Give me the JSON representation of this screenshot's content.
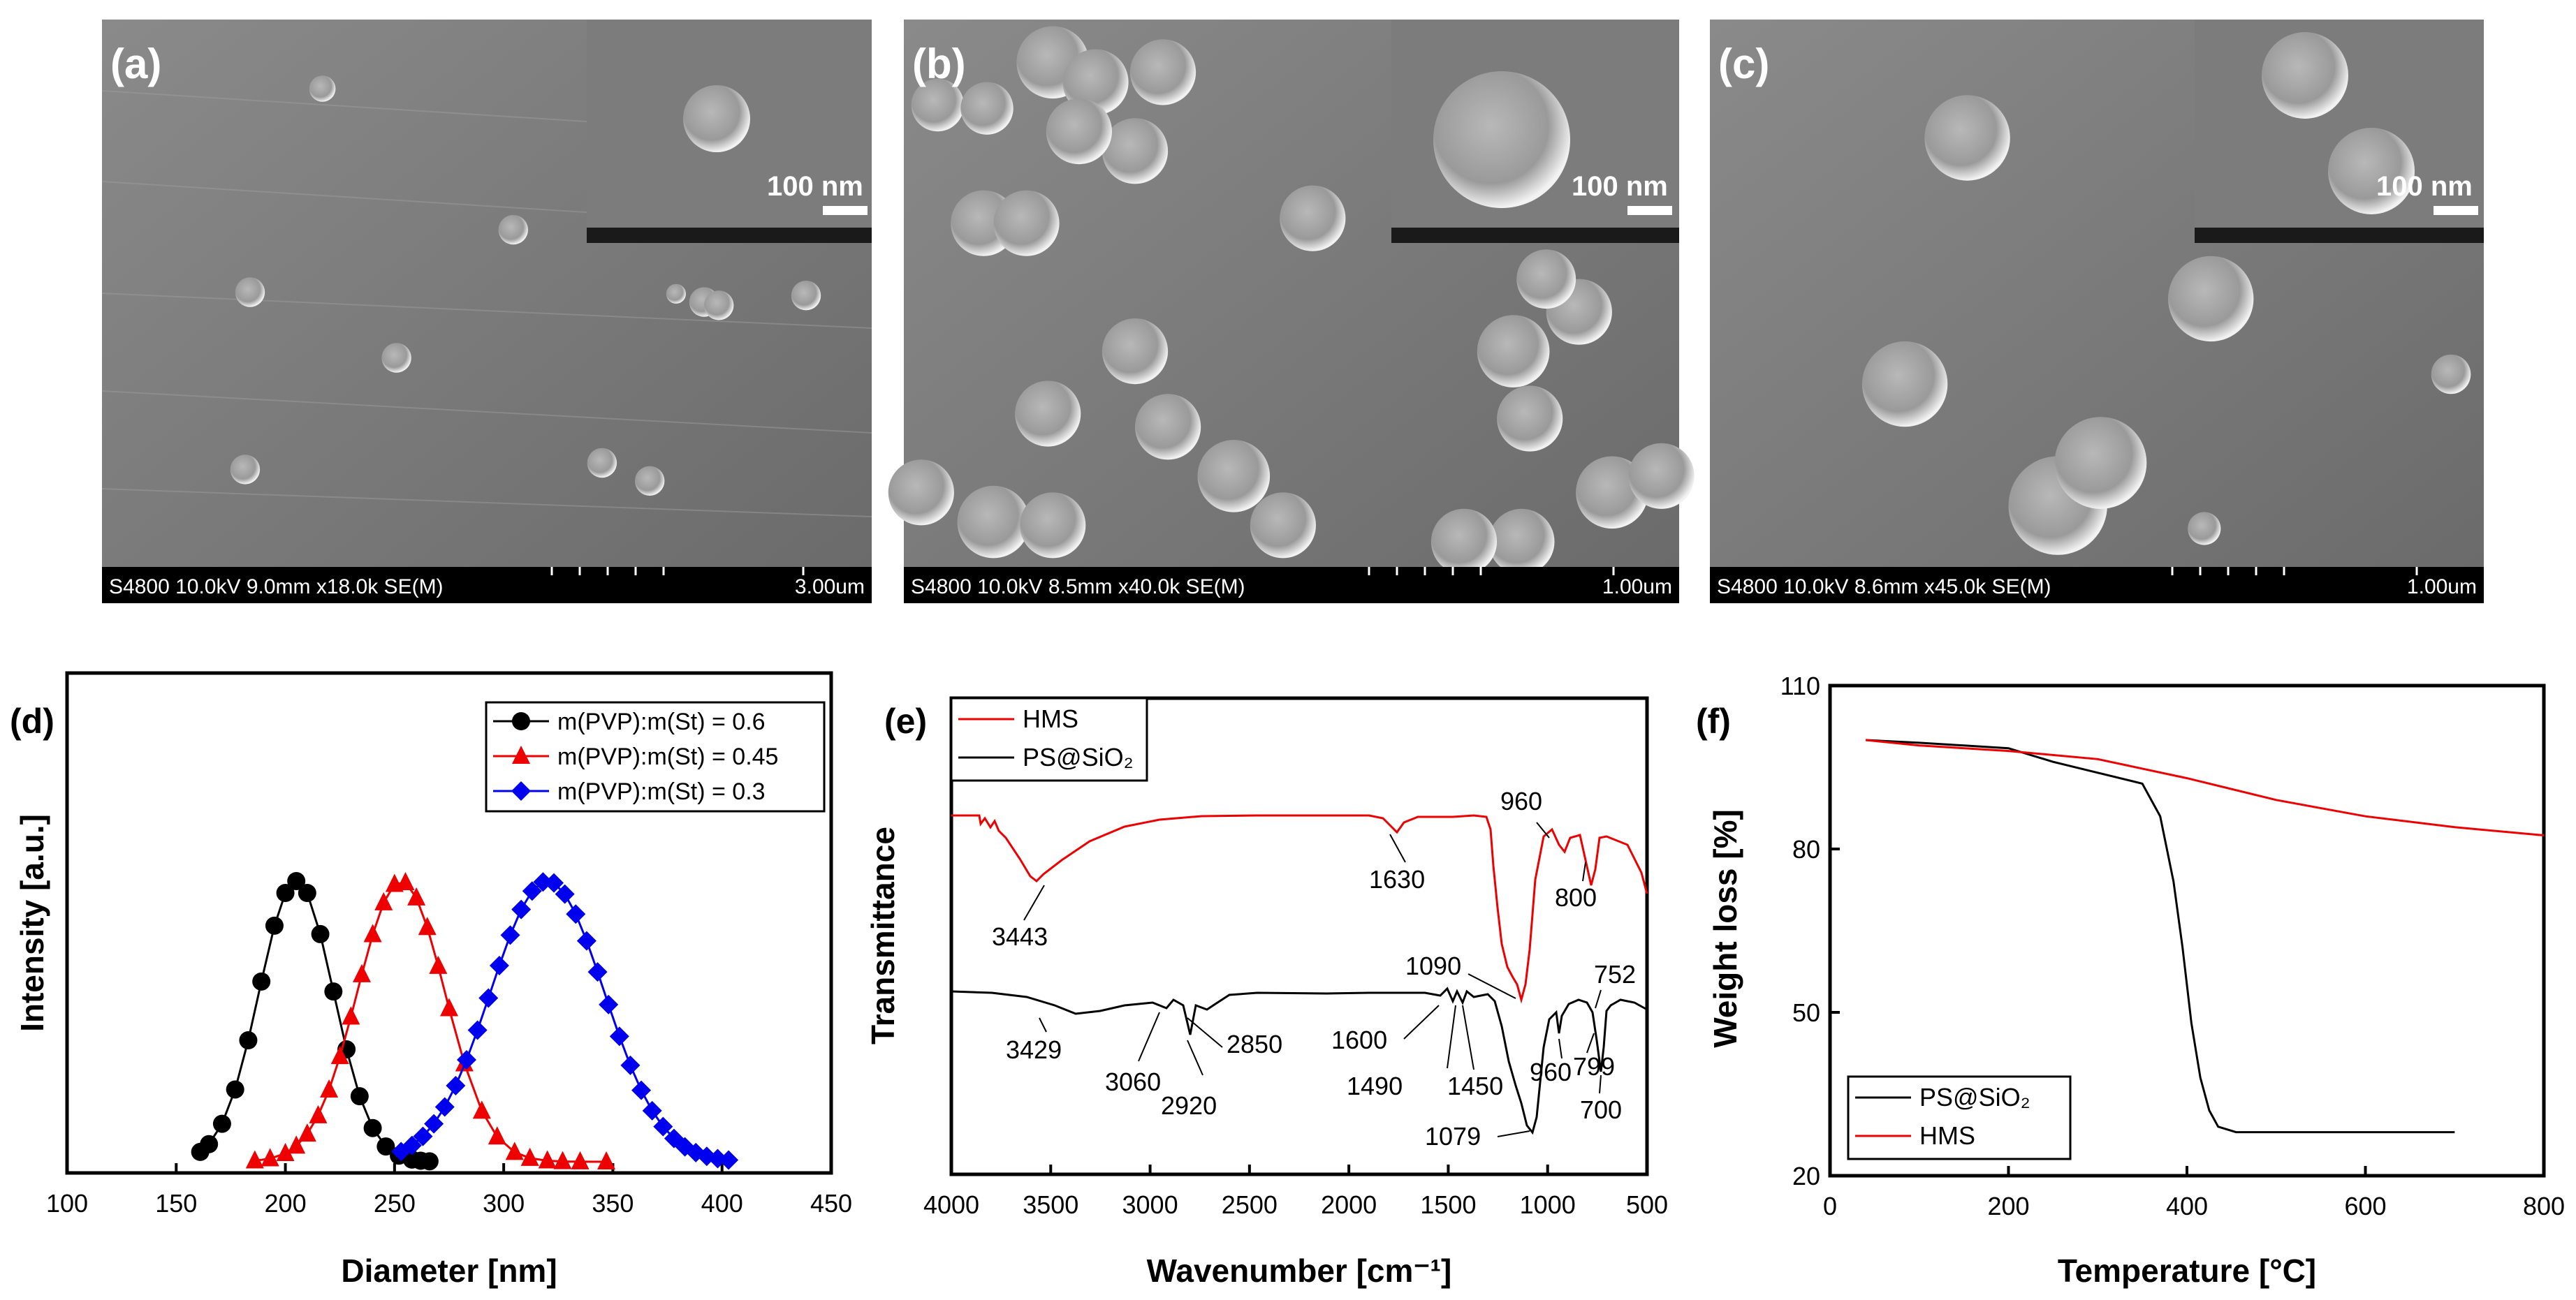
{
  "sem": [
    {
      "label": "(a)",
      "scale": "100 nm",
      "bar": "S4800 10.0kV 9.0mm x18.0k SE(M)",
      "bar_scale": "3.00um"
    },
    {
      "label": "(b)",
      "scale": "100 nm",
      "bar": "S4800 10.0kV 8.5mm x40.0k SE(M)",
      "bar_scale": "1.00um"
    },
    {
      "label": "(c)",
      "scale": "100 nm",
      "bar": "S4800 10.0kV 8.6mm x45.0k SE(M)",
      "bar_scale": "1.00um"
    }
  ],
  "chart_data": [
    {
      "type": "scatter",
      "panel_label": "(d)",
      "xlabel": "Diameter  [nm]",
      "ylabel": "Intensity  [a.u.]",
      "xlim": [
        100,
        450
      ],
      "xticks": [
        100,
        150,
        200,
        250,
        300,
        350,
        400,
        450
      ],
      "legend_position": "top-right",
      "series": [
        {
          "name": "m(PVP):m(St) = 0.6",
          "color": "#000000",
          "marker": "circle",
          "center": 205,
          "sigma": 17,
          "x": [
            161,
            165,
            171,
            177,
            183,
            189,
            195,
            200,
            205,
            210,
            216,
            222,
            228,
            234,
            240,
            246,
            252,
            258,
            262,
            266
          ]
        },
        {
          "name": "m(PVP):m(St) = 0.45",
          "color": "#ee0000",
          "marker": "triangle",
          "center": 253,
          "sigma": 20,
          "x": [
            186,
            193,
            200,
            205,
            210,
            215,
            220,
            225,
            230,
            235,
            240,
            245,
            250,
            255,
            260,
            265,
            270,
            275,
            282,
            290,
            297,
            305,
            312,
            320,
            327,
            335,
            347
          ]
        },
        {
          "name": "m(PVP):m(St) = 0.3",
          "color": "#0000ee",
          "marker": "diamond",
          "center": 320,
          "sigma": 26,
          "x": [
            253,
            258,
            263,
            268,
            273,
            278,
            283,
            288,
            293,
            298,
            303,
            308,
            313,
            318,
            323,
            328,
            333,
            338,
            343,
            348,
            353,
            358,
            363,
            368,
            373,
            378,
            383,
            388,
            393,
            398,
            403
          ]
        }
      ]
    },
    {
      "type": "line",
      "panel_label": "(e)",
      "xlabel": "Wavenumber  [cm⁻¹]",
      "ylabel": "Transmittance",
      "xlim": [
        4000,
        500
      ],
      "xticks": [
        4000,
        3500,
        3000,
        2500,
        2000,
        1500,
        1000,
        500
      ],
      "legend_position": "top-left",
      "series": [
        {
          "name": "HMS",
          "color": "#ee0000"
        },
        {
          "name": "PS@SiO₂",
          "color": "#000000"
        }
      ],
      "annotations": [
        "3443",
        "1630",
        "960",
        "800",
        "1090",
        "752",
        "3429",
        "3060",
        "2920",
        "2850",
        "1600",
        "1490",
        "1450",
        "960",
        "799",
        "700",
        "1079"
      ]
    },
    {
      "type": "line",
      "panel_label": "(f)",
      "xlabel": "Temperature  [°C]",
      "ylabel": "Weight loss  [%]",
      "xlim": [
        0,
        800
      ],
      "ylim": [
        20,
        110
      ],
      "xticks": [
        0,
        200,
        400,
        600,
        800
      ],
      "yticks": [
        20,
        50,
        80,
        110
      ],
      "legend_position": "bottom-left",
      "series": [
        {
          "name": "PS@SiO₂",
          "color": "#000000",
          "x": [
            40,
            100,
            150,
            200,
            250,
            300,
            350,
            370,
            385,
            395,
            405,
            415,
            425,
            435,
            445,
            455,
            500,
            600,
            700
          ],
          "y": [
            100,
            99.5,
            99,
            98.5,
            96,
            94,
            92,
            86,
            74,
            62,
            48,
            38,
            32,
            29,
            28.5,
            28,
            28,
            28,
            28
          ]
        },
        {
          "name": "HMS",
          "color": "#ee0000",
          "x": [
            40,
            100,
            200,
            300,
            400,
            500,
            600,
            700,
            800
          ],
          "y": [
            100,
            99,
            98,
            96.5,
            93,
            89,
            86,
            84,
            82.5
          ]
        }
      ]
    }
  ]
}
